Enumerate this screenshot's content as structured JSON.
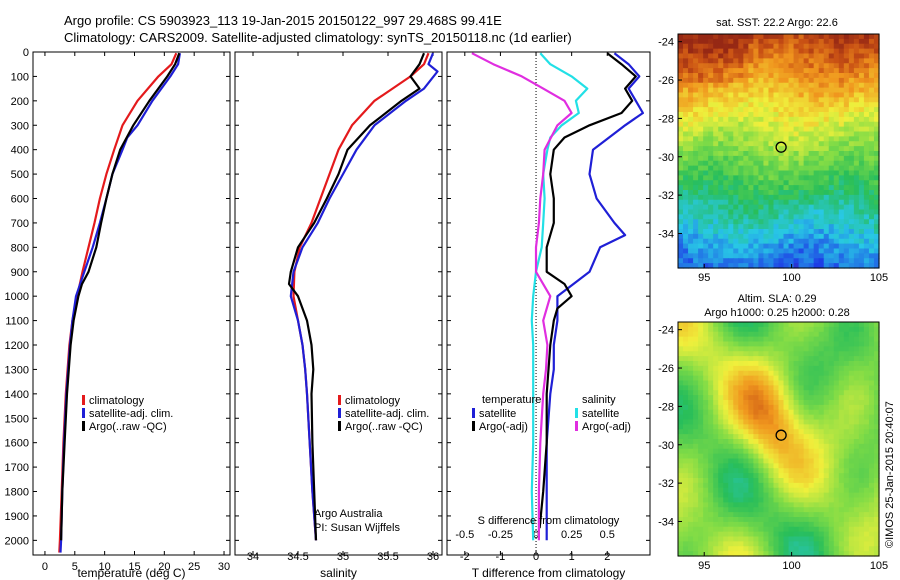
{
  "title_line1": "Argo profile: CS 5903923_113 19-Jan-2015 20150122_997 29.468S 99.41E",
  "title_line2": "Climatology: CARS2009. Satellite-adjusted climatology: synTS_20150118.nc (1d earlier)",
  "sst_label": "sat. SST: 22.2 Argo: 22.6",
  "sla_label1": "Altim. SLA: 0.29",
  "sla_label2": "Argo h1000: 0.25 h2000: 0.28",
  "imos_stamp": "©IMOS 25-Jan-2015 20:40:07",
  "argo_credit1": "Argo Australia",
  "argo_credit2": "PI: Susan Wijffels",
  "colors": {
    "climatology": "#e41a1c",
    "satellite": "#1f1fd6",
    "argo": "#000000",
    "salinity_satellite": "#22e0e6",
    "salinity_argo": "#e02ee0"
  },
  "chart_data": [
    {
      "type": "line",
      "xlabel": "temperature (deg C)",
      "ylabel": "",
      "xlim": [
        -2,
        31
      ],
      "ylim": [
        2060,
        0
      ],
      "x_ticks": [
        "0",
        "5",
        "10",
        "15",
        "20",
        "25",
        "30"
      ],
      "y_ticks": [
        "0",
        "100",
        "200",
        "300",
        "400",
        "500",
        "600",
        "700",
        "800",
        "900",
        "1000",
        "1100",
        "1200",
        "1300",
        "1400",
        "1500",
        "1600",
        "1700",
        "1800",
        "1900",
        "2000"
      ],
      "legend": [
        "climatology",
        "satellite-adj. clim.",
        "Argo(..raw -QC)"
      ],
      "legend_position": "lower-center",
      "series": [
        {
          "name": "climatology",
          "color": "#e41a1c",
          "depth": [
            5,
            50,
            100,
            200,
            300,
            400,
            500,
            600,
            700,
            800,
            900,
            1000,
            1100,
            1200,
            1400,
            1600,
            1800,
            2000,
            2050
          ],
          "values": [
            22.0,
            21.2,
            19.0,
            15.5,
            13.0,
            11.6,
            10.3,
            9.2,
            8.3,
            7.3,
            6.3,
            5.4,
            4.6,
            4.1,
            3.5,
            3.1,
            2.8,
            2.5,
            2.4
          ]
        },
        {
          "name": "satellite-adj. clim.",
          "color": "#1f1fd6",
          "depth": [
            5,
            50,
            100,
            200,
            300,
            350,
            400,
            500,
            600,
            700,
            800,
            900,
            1000,
            1100,
            1200,
            1400,
            1600,
            1800,
            2000,
            2050
          ],
          "values": [
            22.6,
            22.3,
            21.0,
            18.0,
            15.5,
            13.8,
            13.0,
            11.3,
            10.3,
            9.2,
            8.0,
            6.6,
            5.2,
            4.6,
            4.2,
            3.6,
            3.2,
            2.9,
            2.7,
            2.6
          ]
        },
        {
          "name": "Argo(..raw -QC)",
          "color": "#000000",
          "depth": [
            5,
            50,
            100,
            200,
            300,
            400,
            500,
            600,
            700,
            800,
            900,
            950,
            1000,
            1100,
            1200,
            1400,
            1600,
            1800,
            2000
          ],
          "values": [
            22.5,
            21.8,
            20.5,
            17.5,
            14.8,
            12.6,
            11.3,
            10.3,
            9.4,
            8.6,
            7.3,
            6.2,
            5.6,
            4.8,
            4.3,
            3.7,
            3.3,
            2.9,
            2.7
          ]
        }
      ]
    },
    {
      "type": "line",
      "xlabel": "salinity",
      "ylabel": "",
      "xlim": [
        33.8,
        36.1
      ],
      "ylim": [
        2060,
        0
      ],
      "x_ticks": [
        "34",
        "34.5",
        "35",
        "35.5",
        "36"
      ],
      "legend": [
        "climatology",
        "satellite-adj. clim.",
        "Argo(..raw -QC)"
      ],
      "legend_position": "lower-center",
      "series": [
        {
          "name": "climatology",
          "color": "#e41a1c",
          "depth": [
            5,
            50,
            100,
            150,
            200,
            300,
            400,
            500,
            600,
            700,
            800,
            900,
            1000,
            1100,
            1200,
            1300,
            1400,
            1600,
            1800,
            2000
          ],
          "values": [
            35.95,
            35.9,
            35.75,
            35.55,
            35.35,
            35.1,
            34.95,
            34.85,
            34.75,
            34.65,
            34.52,
            34.46,
            34.45,
            34.5,
            34.55,
            34.58,
            34.6,
            34.63,
            34.66,
            34.7
          ]
        },
        {
          "name": "satellite-adj. clim.",
          "color": "#1f1fd6",
          "depth": [
            5,
            50,
            80,
            150,
            200,
            300,
            400,
            500,
            600,
            700,
            800,
            900,
            1000,
            1100,
            1200,
            1300,
            1400,
            1600,
            1800,
            2000
          ],
          "values": [
            36.0,
            35.95,
            36.05,
            35.9,
            35.7,
            35.35,
            35.15,
            35.0,
            34.85,
            34.72,
            34.55,
            34.45,
            34.42,
            34.5,
            34.55,
            34.58,
            34.6,
            34.63,
            34.66,
            34.7
          ]
        },
        {
          "name": "Argo(..raw -QC)",
          "color": "#000000",
          "depth": [
            5,
            50,
            100,
            150,
            200,
            300,
            400,
            500,
            600,
            700,
            800,
            900,
            950,
            1000,
            1100,
            1200,
            1300,
            1400,
            1600,
            1800,
            2000
          ],
          "values": [
            35.9,
            35.85,
            35.75,
            35.85,
            35.65,
            35.3,
            35.05,
            34.95,
            34.82,
            34.68,
            34.5,
            34.42,
            34.4,
            34.5,
            34.6,
            34.65,
            34.67,
            34.65,
            34.66,
            34.68,
            34.7
          ]
        }
      ]
    },
    {
      "type": "line",
      "xlabel": "T difference from climatology",
      "x2label": "S difference from climatology",
      "ylabel": "",
      "xlim": [
        -2.5,
        3.2
      ],
      "x2lim": [
        -0.625,
        0.8
      ],
      "ylim": [
        2060,
        0
      ],
      "x_ticks": [
        "-2",
        "-1",
        "0",
        "1",
        "2"
      ],
      "x2_ticks": [
        "-0.5",
        "-0.25",
        "0",
        "0.25",
        "0.5"
      ],
      "legend_groups": [
        {
          "title": "temperature",
          "items": [
            "satellite",
            "Argo(-adj)"
          ]
        },
        {
          "title": "salinity",
          "items": [
            "satellite",
            "Argo(-adj)"
          ]
        }
      ],
      "series": [
        {
          "name": "temperature satellite",
          "color": "#1f1fd6",
          "axis": "T",
          "depth": [
            5,
            50,
            100,
            150,
            200,
            250,
            300,
            400,
            500,
            600,
            700,
            750,
            800,
            900,
            1000,
            1100,
            1200,
            1300,
            1400,
            1600,
            1800,
            2000
          ],
          "values": [
            2.2,
            2.6,
            2.9,
            2.6,
            2.8,
            3.0,
            2.5,
            1.6,
            1.5,
            1.7,
            2.2,
            2.5,
            1.8,
            1.5,
            0.6,
            0.6,
            0.5,
            0.5,
            0.4,
            0.3,
            0.3,
            0.3
          ]
        },
        {
          "name": "temperature Argo(-adj)",
          "color": "#000000",
          "axis": "T",
          "depth": [
            5,
            50,
            100,
            150,
            200,
            250,
            300,
            350,
            400,
            500,
            600,
            700,
            800,
            900,
            950,
            1000,
            1050,
            1100,
            1200,
            1400,
            1600,
            1800,
            1950
          ],
          "values": [
            2.0,
            2.4,
            2.8,
            2.5,
            2.7,
            2.4,
            1.5,
            0.8,
            0.5,
            0.4,
            0.5,
            0.5,
            0.3,
            0.3,
            0.8,
            1.0,
            0.6,
            0.5,
            0.4,
            0.3,
            0.3,
            0.2,
            0.1
          ]
        },
        {
          "name": "salinity satellite",
          "color": "#22e0e6",
          "axis": "S",
          "depth": [
            5,
            50,
            100,
            150,
            200,
            250,
            300,
            350,
            400,
            500,
            600,
            700,
            800,
            900,
            1000,
            1100,
            1200,
            1300,
            1400,
            1600,
            1800,
            2000
          ],
          "values": [
            0.03,
            0.1,
            0.25,
            0.36,
            0.28,
            0.3,
            0.18,
            0.1,
            0.08,
            0.05,
            0.06,
            0.05,
            0.04,
            0.0,
            -0.02,
            -0.03,
            -0.02,
            -0.02,
            -0.02,
            -0.02,
            -0.03,
            -0.02
          ]
        },
        {
          "name": "salinity Argo(-adj)",
          "color": "#e02ee0",
          "axis": "S",
          "depth": [
            5,
            50,
            100,
            150,
            200,
            250,
            300,
            400,
            500,
            600,
            700,
            800,
            900,
            1000,
            1100,
            1200,
            1300,
            1400,
            1600,
            1800,
            2000
          ],
          "values": [
            -0.45,
            -0.3,
            -0.1,
            0.05,
            0.2,
            0.25,
            0.15,
            0.06,
            0.05,
            0.03,
            0.02,
            0.0,
            0.0,
            0.1,
            0.05,
            0.08,
            0.07,
            0.05,
            0.03,
            0.02,
            0.02
          ]
        }
      ]
    },
    {
      "type": "heatmap",
      "title": "sat. SST: 22.2 Argo: 22.6",
      "xlim": [
        93.5,
        105
      ],
      "ylim": [
        -35.8,
        -23.6
      ],
      "x_ticks": [
        "95",
        "100",
        "105"
      ],
      "y_ticks": [
        "-24",
        "-26",
        "-28",
        "-30",
        "-32",
        "-34"
      ],
      "argo_position": [
        99.4,
        -29.5
      ]
    },
    {
      "type": "heatmap",
      "title": "Altim. SLA: 0.29 / Argo h1000: 0.25 h2000: 0.28",
      "xlim": [
        93.5,
        105
      ],
      "ylim": [
        -35.8,
        -23.6
      ],
      "x_ticks": [
        "95",
        "100",
        "105"
      ],
      "y_ticks": [
        "-24",
        "-26",
        "-28",
        "-30",
        "-32",
        "-34"
      ],
      "argo_position": [
        99.4,
        -29.5
      ]
    }
  ]
}
